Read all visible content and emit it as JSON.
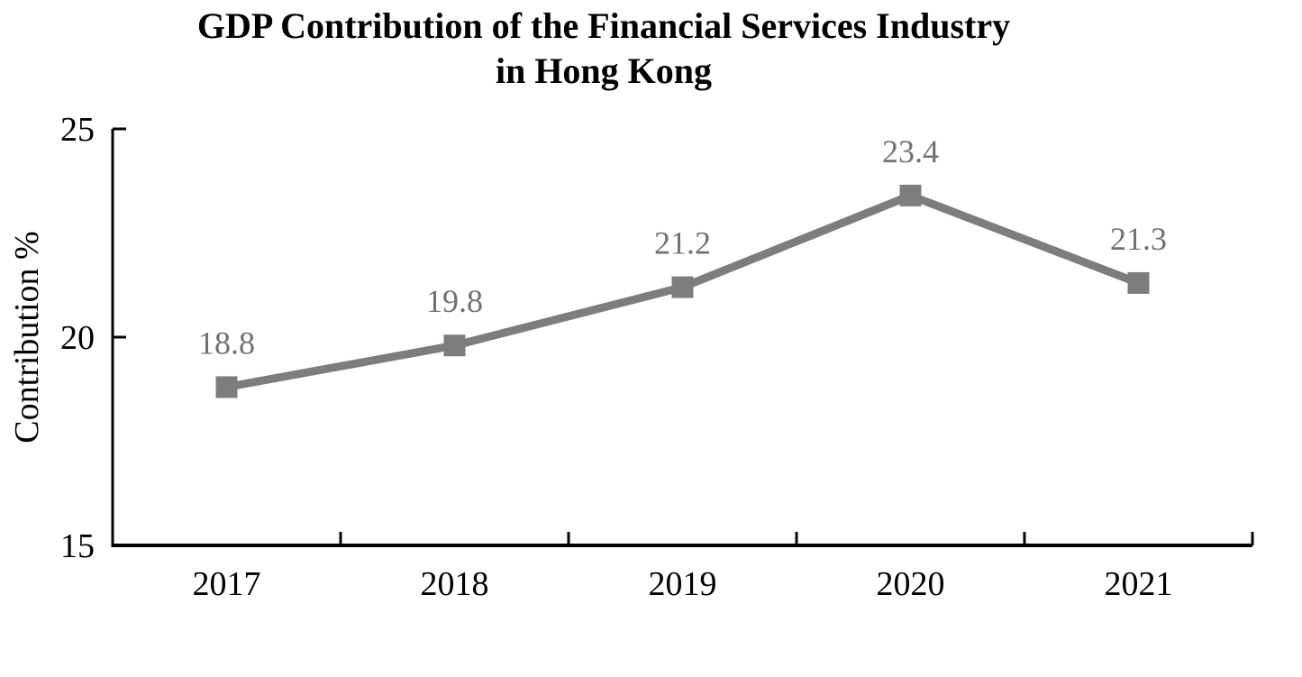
{
  "title": {
    "line1": "GDP Contribution of the Financial Services Industry",
    "line2": "in Hong Kong"
  },
  "chart_data": {
    "type": "line",
    "title": "GDP Contribution of the Financial Services Industry in Hong Kong",
    "categories": [
      "2017",
      "2018",
      "2019",
      "2020",
      "2021"
    ],
    "values": [
      18.8,
      19.8,
      21.2,
      23.4,
      21.3
    ],
    "data_labels": [
      "18.8",
      "19.8",
      "21.2",
      "23.4",
      "21.3"
    ],
    "xlabel": "",
    "ylabel": "Contribution %",
    "ylim": [
      15,
      25
    ],
    "yticks": [
      15,
      20,
      25
    ],
    "grid": false,
    "legend": "none",
    "marker": "square",
    "series_color": "#7d7d7d",
    "data_label_color": "#717171",
    "axis_color": "#000000",
    "tick_label_color": "#000000"
  }
}
